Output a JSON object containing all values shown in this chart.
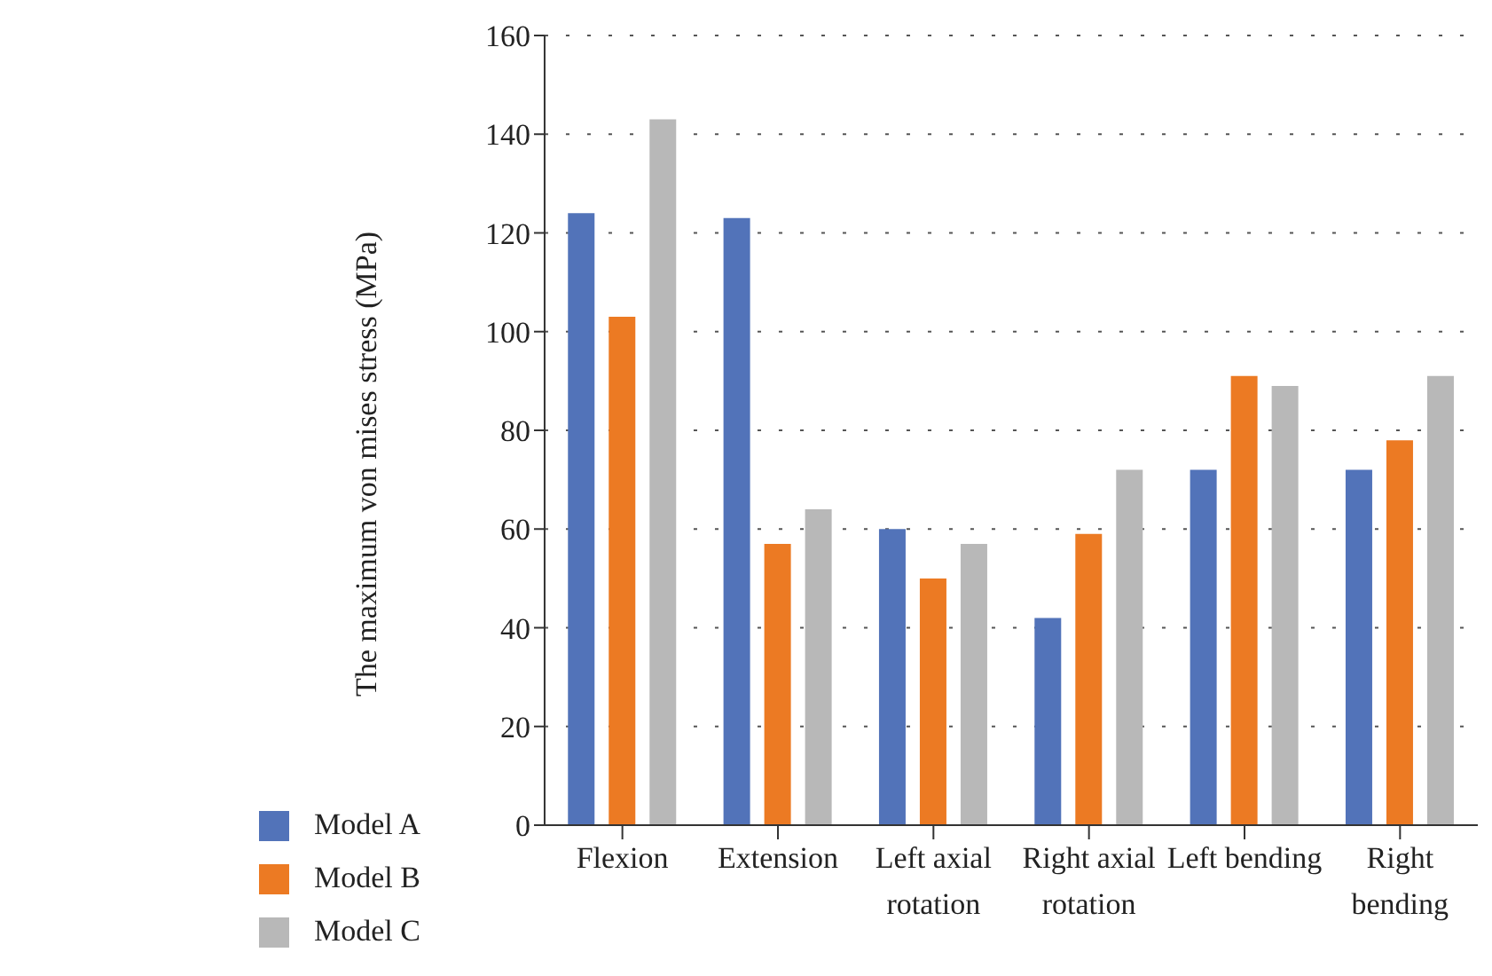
{
  "chart_data": {
    "type": "bar",
    "ylabel": "The maximum von mises stress (MPa)",
    "categories": [
      "Flexion",
      "Extension",
      "Left axial rotation",
      "Right axial rotation",
      "Left bending",
      "Right bending"
    ],
    "series": [
      {
        "name": "Model A",
        "color": "#5273b9",
        "values": [
          124,
          123,
          60,
          42,
          72,
          72
        ]
      },
      {
        "name": "Model B",
        "color": "#ec7a23",
        "values": [
          103,
          57,
          50,
          59,
          91,
          78
        ]
      },
      {
        "name": "Model C",
        "color": "#b8b8b8",
        "values": [
          143,
          64,
          57,
          72,
          89,
          91
        ]
      }
    ],
    "ylim": [
      0,
      160
    ],
    "yticks": [
      0,
      20,
      40,
      60,
      80,
      100,
      120,
      140,
      160
    ],
    "grid": "y",
    "legend": "bottom left"
  }
}
